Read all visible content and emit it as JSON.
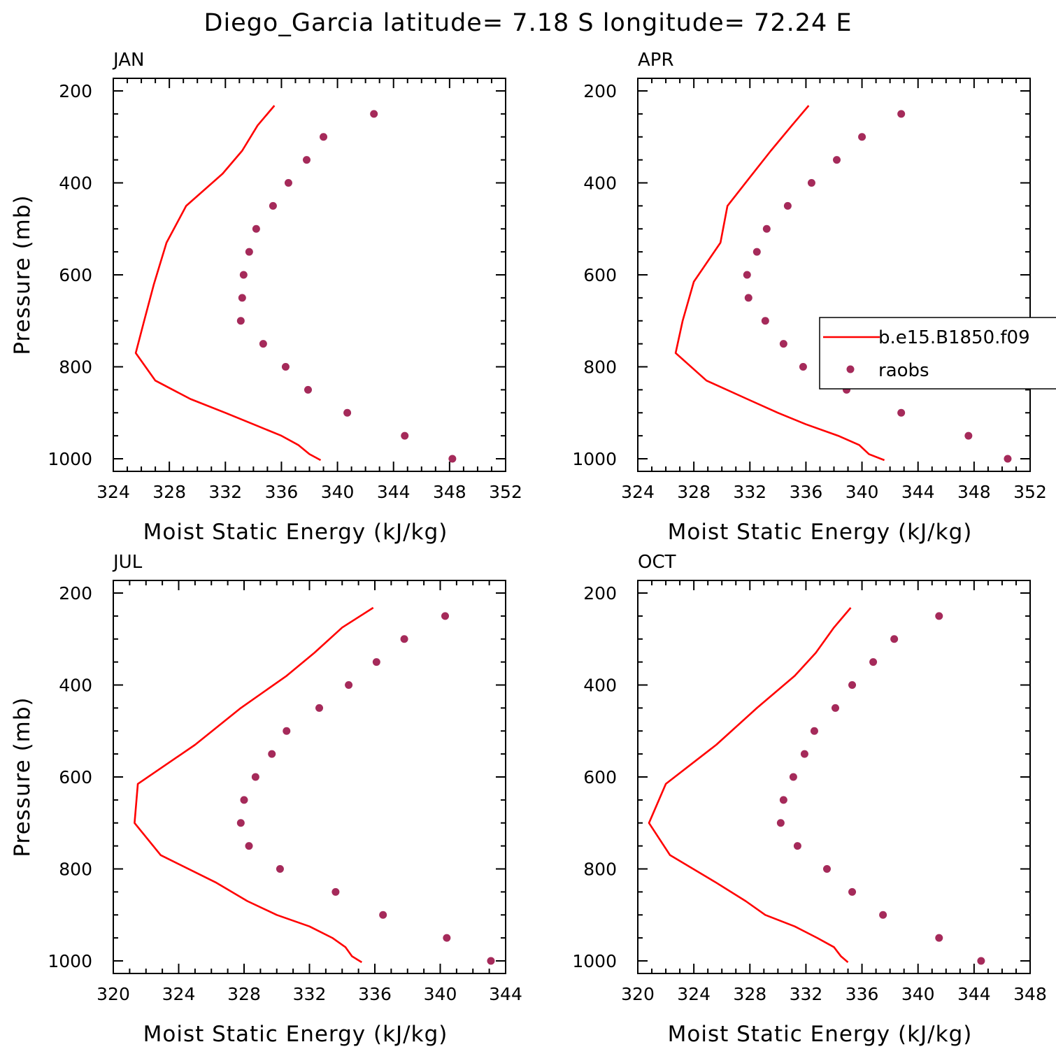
{
  "figure": {
    "title": "Diego_Garcia  latitude= 7.18 S longitude= 72.24 E"
  },
  "legend": {
    "model_label": "b.e15.B1850.f09",
    "obs_label": "raobs"
  },
  "colors": {
    "model_line": "#ff0000",
    "obs_marker": "#a52a5a",
    "axis": "#000000"
  },
  "chart_data": [
    {
      "type": "line",
      "title": "JAN",
      "xlabel": "Moist Static Energy (kJ/kg)",
      "ylabel": "Pressure (mb)",
      "xlim": [
        324,
        352
      ],
      "ylim": [
        200,
        1000
      ],
      "y_inverted": true,
      "xticks": [
        324,
        328,
        332,
        336,
        340,
        344,
        348,
        352
      ],
      "yticks": [
        200,
        400,
        600,
        800,
        1000
      ],
      "series": [
        {
          "name": "b.e15.B1850.f09",
          "style": "line",
          "pressure": [
            1003,
            990,
            970,
            950,
            925,
            900,
            870,
            830,
            770,
            700,
            620,
            530,
            450,
            380,
            330,
            275,
            232
          ],
          "mse": [
            338.8,
            338.0,
            337.2,
            336.0,
            334.0,
            332.0,
            329.5,
            327.0,
            325.6,
            326.2,
            326.9,
            327.8,
            329.2,
            331.8,
            333.2,
            334.3,
            335.5
          ]
        },
        {
          "name": "raobs",
          "style": "markers",
          "pressure": [
            250,
            300,
            350,
            400,
            450,
            500,
            550,
            600,
            650,
            700,
            750,
            800,
            850,
            900,
            950,
            1000
          ],
          "mse": [
            342.6,
            339.0,
            337.8,
            336.5,
            335.4,
            334.2,
            333.7,
            333.3,
            333.2,
            333.1,
            334.7,
            336.3,
            337.9,
            340.7,
            344.8,
            348.2
          ]
        }
      ]
    },
    {
      "type": "line",
      "title": "APR",
      "xlabel": "Moist Static Energy (kJ/kg)",
      "ylabel": "",
      "xlim": [
        324,
        352
      ],
      "ylim": [
        200,
        1000
      ],
      "y_inverted": true,
      "xticks": [
        324,
        328,
        332,
        336,
        340,
        344,
        348,
        352
      ],
      "yticks": [
        200,
        400,
        600,
        800,
        1000
      ],
      "series": [
        {
          "name": "b.e15.B1850.f09",
          "style": "line",
          "pressure": [
            1003,
            990,
            970,
            950,
            925,
            900,
            870,
            830,
            770,
            700,
            615,
            530,
            450,
            380,
            330,
            275,
            232
          ],
          "mse": [
            341.6,
            340.5,
            339.8,
            338.3,
            336.0,
            334.0,
            331.8,
            328.9,
            326.7,
            327.2,
            328.0,
            329.9,
            330.4,
            332.2,
            333.5,
            335.0,
            336.2
          ]
        },
        {
          "name": "raobs",
          "style": "markers",
          "pressure": [
            250,
            300,
            350,
            400,
            450,
            500,
            550,
            600,
            650,
            700,
            750,
            800,
            850,
            900,
            950,
            1000
          ],
          "mse": [
            342.8,
            340.0,
            338.2,
            336.4,
            334.7,
            333.2,
            332.5,
            331.8,
            331.9,
            333.1,
            334.4,
            335.8,
            338.9,
            342.8,
            347.6,
            350.4
          ]
        }
      ]
    },
    {
      "type": "line",
      "title": "JUL",
      "xlabel": "Moist Static Energy (kJ/kg)",
      "ylabel": "Pressure (mb)",
      "xlim": [
        320,
        344
      ],
      "ylim": [
        200,
        1000
      ],
      "y_inverted": true,
      "xticks": [
        320,
        324,
        328,
        332,
        336,
        340,
        344
      ],
      "yticks": [
        200,
        400,
        600,
        800,
        1000
      ],
      "series": [
        {
          "name": "b.e15.B1850.f09",
          "style": "line",
          "pressure": [
            1003,
            990,
            970,
            950,
            925,
            900,
            870,
            830,
            770,
            700,
            615,
            530,
            450,
            380,
            330,
            275,
            232
          ],
          "mse": [
            335.2,
            334.6,
            334.2,
            333.4,
            332.0,
            330.0,
            328.2,
            326.3,
            322.9,
            321.3,
            321.5,
            325.0,
            327.8,
            330.6,
            332.3,
            334.0,
            335.9
          ]
        },
        {
          "name": "raobs",
          "style": "markers",
          "pressure": [
            250,
            300,
            350,
            400,
            450,
            500,
            550,
            600,
            650,
            700,
            750,
            800,
            850,
            900,
            950,
            1000
          ],
          "mse": [
            340.3,
            337.8,
            336.1,
            334.4,
            332.6,
            330.6,
            329.7,
            328.7,
            328.0,
            327.8,
            328.3,
            330.2,
            333.6,
            336.5,
            340.4,
            343.1
          ]
        }
      ]
    },
    {
      "type": "line",
      "title": "OCT",
      "xlabel": "Moist Static Energy (kJ/kg)",
      "ylabel": "",
      "xlim": [
        320,
        348
      ],
      "ylim": [
        200,
        1000
      ],
      "y_inverted": true,
      "xticks": [
        320,
        324,
        328,
        332,
        336,
        340,
        344,
        348
      ],
      "yticks": [
        200,
        400,
        600,
        800,
        1000
      ],
      "series": [
        {
          "name": "b.e15.B1850.f09",
          "style": "line",
          "pressure": [
            1003,
            990,
            970,
            950,
            925,
            900,
            870,
            830,
            770,
            700,
            615,
            530,
            450,
            380,
            330,
            275,
            232
          ],
          "mse": [
            335.0,
            334.5,
            334.0,
            332.8,
            331.2,
            329.1,
            327.7,
            325.6,
            322.3,
            320.8,
            322.0,
            325.6,
            328.5,
            331.2,
            332.7,
            334.0,
            335.2
          ]
        },
        {
          "name": "raobs",
          "style": "markers",
          "pressure": [
            250,
            300,
            350,
            400,
            450,
            500,
            550,
            600,
            650,
            700,
            750,
            800,
            850,
            900,
            950,
            1000
          ],
          "mse": [
            341.5,
            338.3,
            336.8,
            335.3,
            334.1,
            332.6,
            331.9,
            331.1,
            330.4,
            330.2,
            331.4,
            333.5,
            335.3,
            337.5,
            341.5,
            344.5
          ]
        }
      ]
    }
  ]
}
